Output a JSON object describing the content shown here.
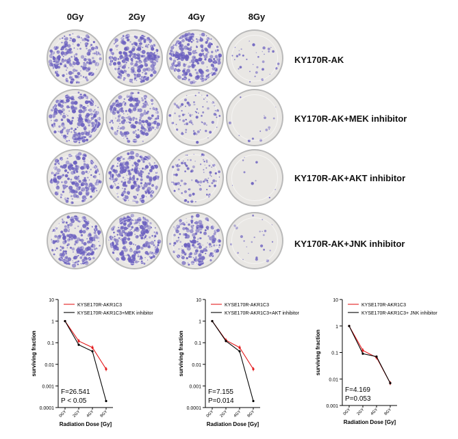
{
  "colony_figure": {
    "column_labels": [
      "0Gy",
      "2Gy",
      "4Gy",
      "8Gy"
    ],
    "row_labels": [
      "KY170R-AK",
      "KY170R-AK+MEK inhibitor",
      "KY170R-AK+AKT inhibitor",
      "KY170R-AK+JNK inhibitor"
    ],
    "colony_density": [
      [
        0.75,
        0.95,
        0.85,
        0.12
      ],
      [
        0.75,
        0.72,
        0.3,
        0.04
      ],
      [
        0.72,
        0.8,
        0.35,
        0.02
      ],
      [
        0.78,
        0.88,
        0.65,
        0.08
      ]
    ],
    "stain_color": "#6a5fbf",
    "dish_color": "#e9e7e4"
  },
  "chart_data": [
    {
      "type": "line",
      "xlabel": "Radiation Dose [Gy]",
      "ylabel": "surviving fraction",
      "x": [
        "0GY",
        "2GY",
        "4GY",
        "8GY"
      ],
      "y_scale": "log",
      "ylim": [
        0.0001,
        10
      ],
      "yticks": [
        "10",
        "1",
        "0.1",
        "0.01",
        "0.001",
        "0.0001"
      ],
      "legend_position": "top",
      "series": [
        {
          "name": "KYSE170R-AKR1C3",
          "color": "#e31a1c",
          "values": [
            1,
            0.12,
            0.06,
            0.006
          ]
        },
        {
          "name": "KYSE170R-AKR1C3+MEK inhibitor",
          "color": "#000000",
          "values": [
            1,
            0.08,
            0.04,
            0.0002
          ]
        }
      ],
      "stats": [
        "F=26.541",
        "P < 0.05"
      ]
    },
    {
      "type": "line",
      "xlabel": "Radiation Dose [Gy]",
      "ylabel": "surviving fraction",
      "x": [
        "0GY",
        "2GY",
        "4GY",
        "8GY"
      ],
      "y_scale": "log",
      "ylim": [
        0.0001,
        10
      ],
      "yticks": [
        "10",
        "1",
        "0.1",
        "0.01",
        "0.001",
        "0.0001"
      ],
      "legend_position": "top",
      "series": [
        {
          "name": "KYSE170R-AKR1C3",
          "color": "#e31a1c",
          "values": [
            1,
            0.13,
            0.06,
            0.006
          ]
        },
        {
          "name": "KYSE170R-AKR1C3+AKT inhibitor",
          "color": "#000000",
          "values": [
            1,
            0.12,
            0.04,
            0.0002
          ]
        }
      ],
      "stats": [
        "F=7.155",
        "P=0.014"
      ]
    },
    {
      "type": "line",
      "xlabel": "Radiation Dose [Gy]",
      "ylabel": "surviving fraction",
      "x": [
        "0GY",
        "2GY",
        "4GY",
        "8GY"
      ],
      "y_scale": "log",
      "ylim": [
        0.001,
        10
      ],
      "yticks": [
        "10",
        "1",
        "0.1",
        "0.01",
        "0.001"
      ],
      "legend_position": "top",
      "series": [
        {
          "name": "KYSE170R-AKR1C3",
          "color": "#e31a1c",
          "values": [
            1,
            0.12,
            0.065,
            0.007
          ]
        },
        {
          "name": "KYSE170R-AKR1C3+ JNK inhibitor",
          "color": "#000000",
          "values": [
            1,
            0.09,
            0.07,
            0.007
          ]
        }
      ],
      "stats": [
        "F=4.169",
        "P=0.053"
      ]
    }
  ]
}
